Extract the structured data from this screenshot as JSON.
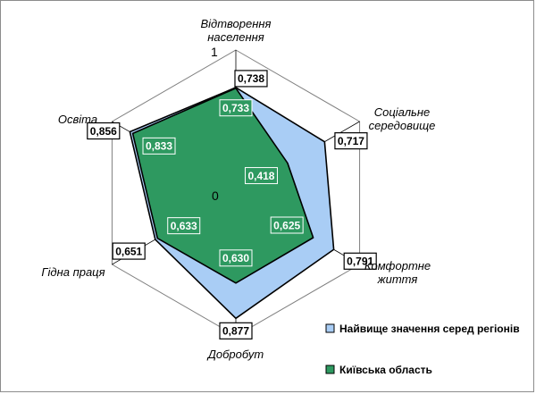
{
  "chart_data": {
    "type": "radar",
    "axes": [
      [
        "Відтворення",
        "населення"
      ],
      [
        "Соціальне",
        "середовище"
      ],
      [
        "Комфортне",
        "життя"
      ],
      [
        "Добробут"
      ],
      [
        "Гідна праця"
      ],
      [
        "Освіта"
      ]
    ],
    "rmin": 0,
    "rmax": 1,
    "scale_labels": {
      "min": "0",
      "max": "1"
    },
    "series": [
      {
        "name": "Найвище значення серед регіонів",
        "color": "#a9cdf5",
        "values": [
          0.738,
          0.717,
          0.791,
          0.877,
          0.651,
          0.856
        ],
        "labels": [
          "0,738",
          "0,717",
          "0,791",
          "0,877",
          "0,651",
          "0,856"
        ]
      },
      {
        "name": "Київська область",
        "color": "#2e9960",
        "values": [
          0.733,
          0.418,
          0.625,
          0.63,
          0.633,
          0.833
        ],
        "labels": [
          "0,733",
          "0,418",
          "0,625",
          "0,630",
          "0,633",
          "0,833"
        ]
      }
    ],
    "grid": true,
    "legend_position": "bottom-right"
  }
}
